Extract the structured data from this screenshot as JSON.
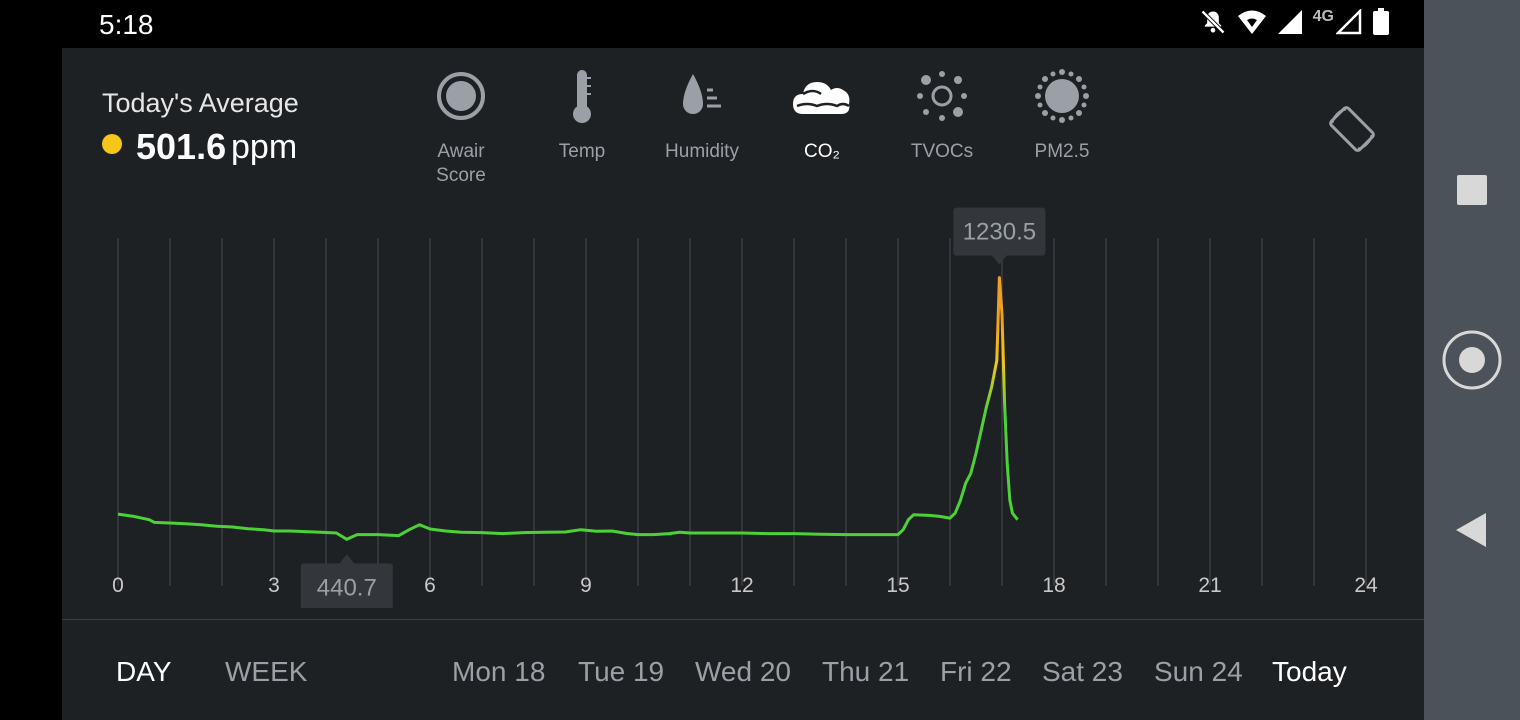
{
  "status_bar": {
    "time": "5:18",
    "network": "4G"
  },
  "summary": {
    "label": "Today's Average",
    "value": "501.6",
    "unit": "ppm",
    "status_color": "#f5c518"
  },
  "metrics": [
    {
      "label": "Awair Score",
      "label_line1": "Awair",
      "label_line2": "Score",
      "icon": "circle-score-icon"
    },
    {
      "label": "Temp",
      "icon": "thermometer-icon"
    },
    {
      "label": "Humidity",
      "icon": "humidity-drop-icon"
    },
    {
      "label": "CO₂",
      "icon": "cloud-icon",
      "selected": true
    },
    {
      "label": "TVOCs",
      "icon": "dots-sun-icon"
    },
    {
      "label": "PM2.5",
      "icon": "particle-icon"
    }
  ],
  "chart_data": {
    "type": "line",
    "title": "",
    "xlabel": "",
    "ylabel": "",
    "xlim": [
      0,
      24
    ],
    "ylim": [
      300,
      1350
    ],
    "x_ticks": [
      "0",
      "3",
      "6",
      "9",
      "12",
      "15",
      "18",
      "21",
      "24"
    ],
    "grid": "vertical-hourly",
    "min_label": "440.7",
    "max_label": "1230.5",
    "min_point": [
      4.4,
      440.7
    ],
    "max_point": [
      16.95,
      1230.5
    ],
    "series": [
      {
        "x": [
          0,
          0.3,
          0.6,
          0.7,
          1.0,
          1.3,
          1.6,
          1.9,
          2.2,
          2.5,
          2.8,
          3.0,
          3.3,
          3.6,
          3.9,
          4.2,
          4.4,
          4.6,
          5.0,
          5.4,
          5.6,
          5.8,
          6.0,
          6.3,
          6.6,
          7.0,
          7.4,
          7.8,
          8.2,
          8.6,
          8.9,
          9.2,
          9.5,
          9.8,
          10.0,
          10.3,
          10.6,
          10.8,
          11.0,
          11.5,
          12.0,
          12.5,
          13.0,
          13.5,
          14.0,
          14.3,
          14.6,
          15.0,
          15.1,
          15.2,
          15.3,
          15.6,
          15.8,
          16.0,
          16.1,
          16.2,
          16.3,
          16.4,
          16.5,
          16.6,
          16.7,
          16.8,
          16.9,
          16.95,
          17.0,
          17.05,
          17.1,
          17.15,
          17.2,
          17.3
        ],
        "y": [
          517,
          510,
          500,
          492,
          490,
          488,
          485,
          480,
          478,
          473,
          470,
          466,
          466,
          464,
          462,
          460,
          441,
          455,
          455,
          452,
          470,
          485,
          472,
          466,
          462,
          461,
          458,
          461,
          462,
          463,
          470,
          465,
          466,
          458,
          455,
          455,
          458,
          462,
          460,
          460,
          460,
          458,
          458,
          456,
          455,
          455,
          455,
          455,
          470,
          500,
          515,
          513,
          510,
          505,
          520,
          558,
          610,
          640,
          700,
          770,
          840,
          900,
          980,
          1230.5,
          1120,
          850,
          670,
          560,
          520,
          500
        ]
      }
    ]
  },
  "range_tabs": [
    {
      "label": "DAY",
      "selected": true
    },
    {
      "label": "WEEK",
      "selected": false
    }
  ],
  "days": [
    {
      "label": "Mon 18"
    },
    {
      "label": "Tue 19"
    },
    {
      "label": "Wed 20"
    },
    {
      "label": "Thu 21"
    },
    {
      "label": "Fri 22"
    },
    {
      "label": "Sat 23"
    },
    {
      "label": "Sun 24"
    },
    {
      "label": "Today",
      "selected": true
    }
  ],
  "colors": {
    "good": "#4cd137",
    "moderate": "#f5c518",
    "elevated": "#f0a020",
    "background": "#1e2124"
  }
}
